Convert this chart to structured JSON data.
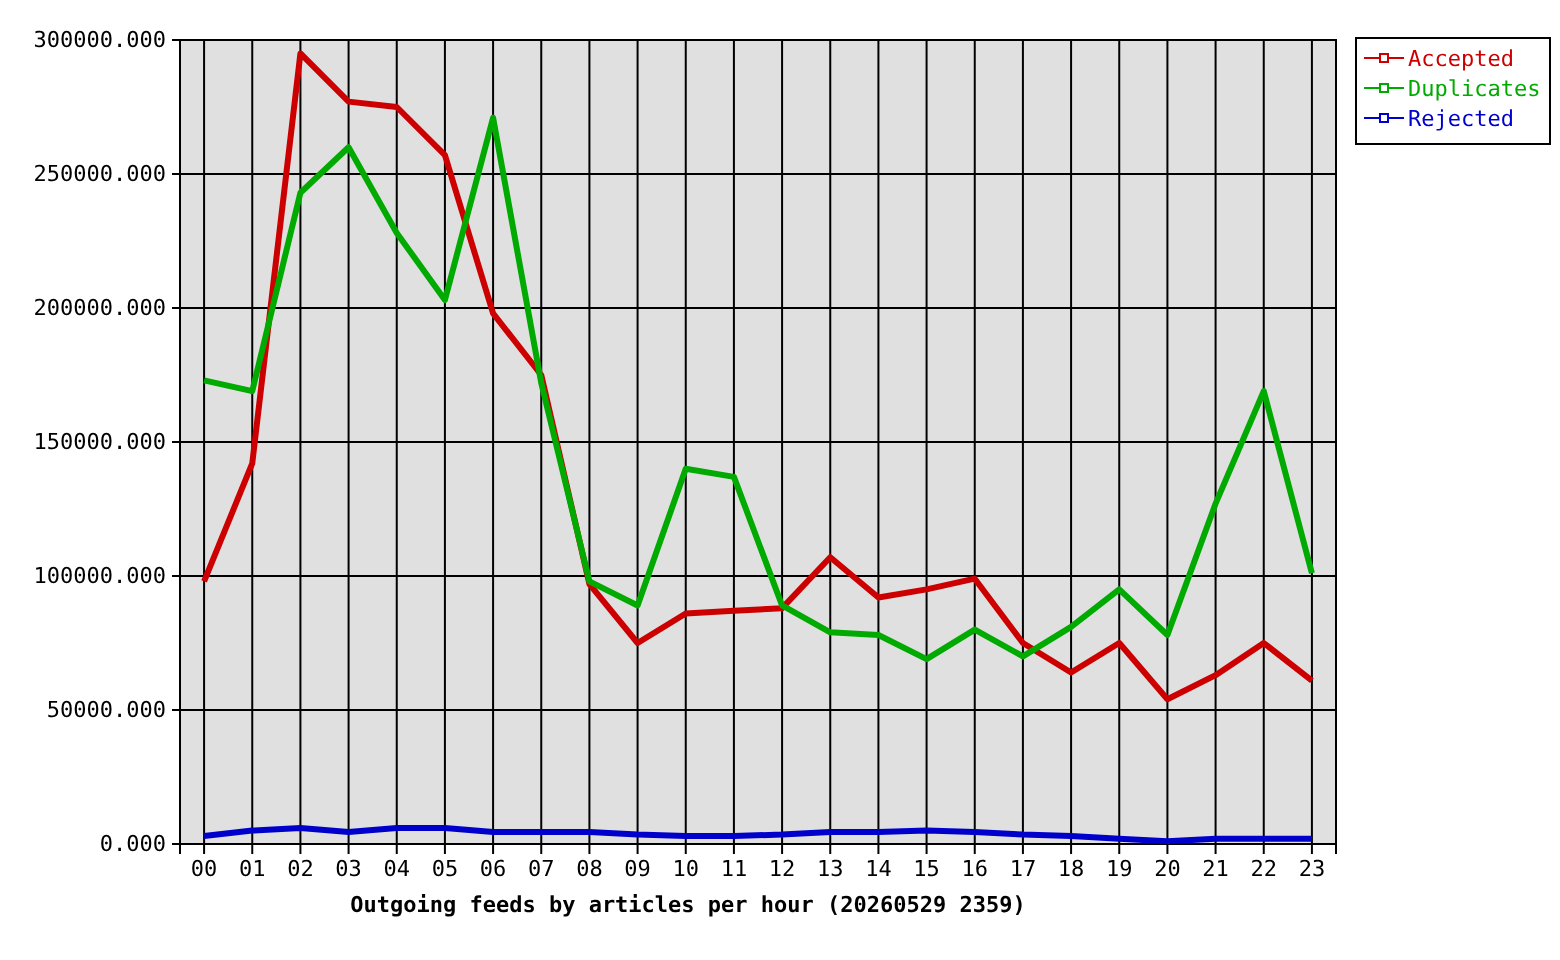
{
  "chart_data": {
    "type": "line",
    "xlabel": "Outgoing feeds by articles per hour (20260529 2359)",
    "categories": [
      "00",
      "01",
      "02",
      "03",
      "04",
      "05",
      "06",
      "07",
      "08",
      "09",
      "10",
      "11",
      "12",
      "13",
      "14",
      "15",
      "16",
      "17",
      "18",
      "19",
      "20",
      "21",
      "22",
      "23"
    ],
    "series": [
      {
        "name": "Accepted",
        "color": "#cc0000",
        "values": [
          98000,
          142000,
          295000,
          277000,
          275000,
          257000,
          198000,
          175000,
          97000,
          75000,
          86000,
          87000,
          88000,
          107000,
          92000,
          95000,
          99000,
          75000,
          64000,
          75000,
          54000,
          63000,
          75000,
          61000
        ]
      },
      {
        "name": "Duplicates",
        "color": "#00aa00",
        "values": [
          173000,
          169000,
          243000,
          260000,
          228000,
          203000,
          271000,
          172000,
          98000,
          89000,
          140000,
          137000,
          89000,
          79000,
          78000,
          69000,
          80000,
          70000,
          81000,
          95000,
          78000,
          127000,
          169000,
          101000
        ]
      },
      {
        "name": "Rejected",
        "color": "#0000cc",
        "values": [
          3000,
          5000,
          6000,
          4500,
          6000,
          6000,
          4500,
          4500,
          4500,
          3500,
          3000,
          3000,
          3500,
          4500,
          4500,
          5000,
          4500,
          3500,
          3000,
          2000,
          1000,
          2000,
          2000,
          2000
        ]
      }
    ],
    "ylim": [
      0,
      300000
    ],
    "yticks": [
      {
        "value": 0,
        "label": "0.000"
      },
      {
        "value": 50000,
        "label": "50000.000"
      },
      {
        "value": 100000,
        "label": "100000.000"
      },
      {
        "value": 150000,
        "label": "150000.000"
      },
      {
        "value": 200000,
        "label": "200000.000"
      },
      {
        "value": 250000,
        "label": "250000.000"
      },
      {
        "value": 300000,
        "label": "300000.000"
      }
    ],
    "grid": true,
    "legend": "top right",
    "marker": "none",
    "line_style": "solid"
  }
}
